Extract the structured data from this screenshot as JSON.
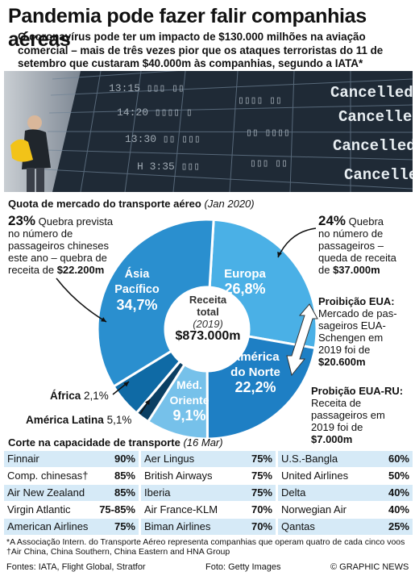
{
  "header": {
    "title": "Pandemia pode fazer falir companhias aéreas",
    "subtitle": "O coronavírus pode ter um impacto de $130.000 milhões na aviação comercial – mais de três vezes pior que os ataques terroristas do 11 de setembro que custaram $40.000m às companhias, segundo a IATA*"
  },
  "photo": {
    "board_text": [
      "Cancelled",
      "Cancelled",
      "Cancelled",
      "Cancelled"
    ]
  },
  "market": {
    "heading": "Quota de mercado do transporte aéreo",
    "heading_date": "(Jan 2020)",
    "center_line1": "Receita",
    "center_line2": "total",
    "center_line3": "(2019)",
    "center_value": "$873.000m",
    "asia_note_pct": "23%",
    "asia_note_text1": " Quebra prevista",
    "asia_note_text2": "no número de",
    "asia_note_text3": "passageiros chineses",
    "asia_note_text4": "este ano – quebra de",
    "asia_note_text5": "receita de ",
    "asia_note_value": "$22.200m",
    "europe_note_pct": "24%",
    "europe_note_text1": " Quebra",
    "europe_note_text2": "no número de",
    "europe_note_text3": "passageiros –",
    "europe_note_text4": "queda de receita",
    "europe_note_text5": "de ",
    "europe_note_value": "$37.000m",
    "us_ban_title": "Proibição EUA:",
    "us_ban_text1": "Mercado de pas-",
    "us_ban_text2": "sageiros EUA-",
    "us_ban_text3": "Schengen em",
    "us_ban_text4": "2019 foi de",
    "us_ban_value": "$20.600m",
    "uk_ban_title": "Probição EUA-RU:",
    "uk_ban_text1": "Receita de",
    "uk_ban_text2": "passageiros em",
    "uk_ban_text3": "2019 foi de",
    "uk_ban_value": "$7.000m"
  },
  "chart_data": {
    "type": "pie",
    "title": "Quota de mercado do transporte aéreo",
    "subtitle": "(Jan 2020)",
    "center_label": "Receita total (2019) $873.000m",
    "slices": [
      {
        "name": "Ásia Pacífico",
        "value": 34.7,
        "label": "34,7%",
        "color": "#2a8fcf"
      },
      {
        "name": "Europa",
        "value": 26.8,
        "label": "26,8%",
        "color": "#4ab0e6"
      },
      {
        "name": "América do Norte",
        "value": 22.2,
        "label": "22,2%",
        "color": "#1e7fc4"
      },
      {
        "name": "Méd. Oriente",
        "value": 9.1,
        "label": "9,1%",
        "color": "#76c1ea"
      },
      {
        "name": "América Latina",
        "value": 5.1,
        "label": "5,1%",
        "color": "#0f6aa5"
      },
      {
        "name": "África",
        "value": 2.1,
        "label": "2,1%",
        "color": "#0b3f63"
      }
    ]
  },
  "cuts": {
    "heading": "Corte na capacidade de transporte",
    "heading_date": "(16 Mar)",
    "col1": [
      {
        "name": "Finnair",
        "pct": "90%"
      },
      {
        "name": "Comp. chinesas†",
        "pct": "85%"
      },
      {
        "name": "Air New Zealand",
        "pct": "85%"
      },
      {
        "name": "Virgin Atlantic",
        "pct": "75-85%"
      },
      {
        "name": "American Airlines",
        "pct": "75%"
      }
    ],
    "col2": [
      {
        "name": "Aer Lingus",
        "pct": "75%"
      },
      {
        "name": "British Airways",
        "pct": "75%"
      },
      {
        "name": "Iberia",
        "pct": "75%"
      },
      {
        "name": "Air France-KLM",
        "pct": "70%"
      },
      {
        "name": "Biman Airlines",
        "pct": "70%"
      }
    ],
    "col3": [
      {
        "name": "U.S.-Bangla",
        "pct": "60%"
      },
      {
        "name": "United Airlines",
        "pct": "50%"
      },
      {
        "name": "Delta",
        "pct": "40%"
      },
      {
        "name": "Norwegian Air",
        "pct": "40%"
      },
      {
        "name": "Qantas",
        "pct": "25%"
      }
    ]
  },
  "footer": {
    "footnote1": "*A Associação Intern. do Transporte Aéreo representa companhias que operam quatro de cada cinco voos",
    "footnote2": "†Air China, China Southern, China Eastern and HNA Group",
    "sources": "Fontes: IATA, Flight Global, Stratfor",
    "photo_credit": "Foto: Getty Images",
    "copyright": "© GRAPHIC NEWS"
  },
  "colors": {
    "row_light": "#d6eaf7",
    "row_white": "#ffffff",
    "accent": "#1e7fc4"
  }
}
